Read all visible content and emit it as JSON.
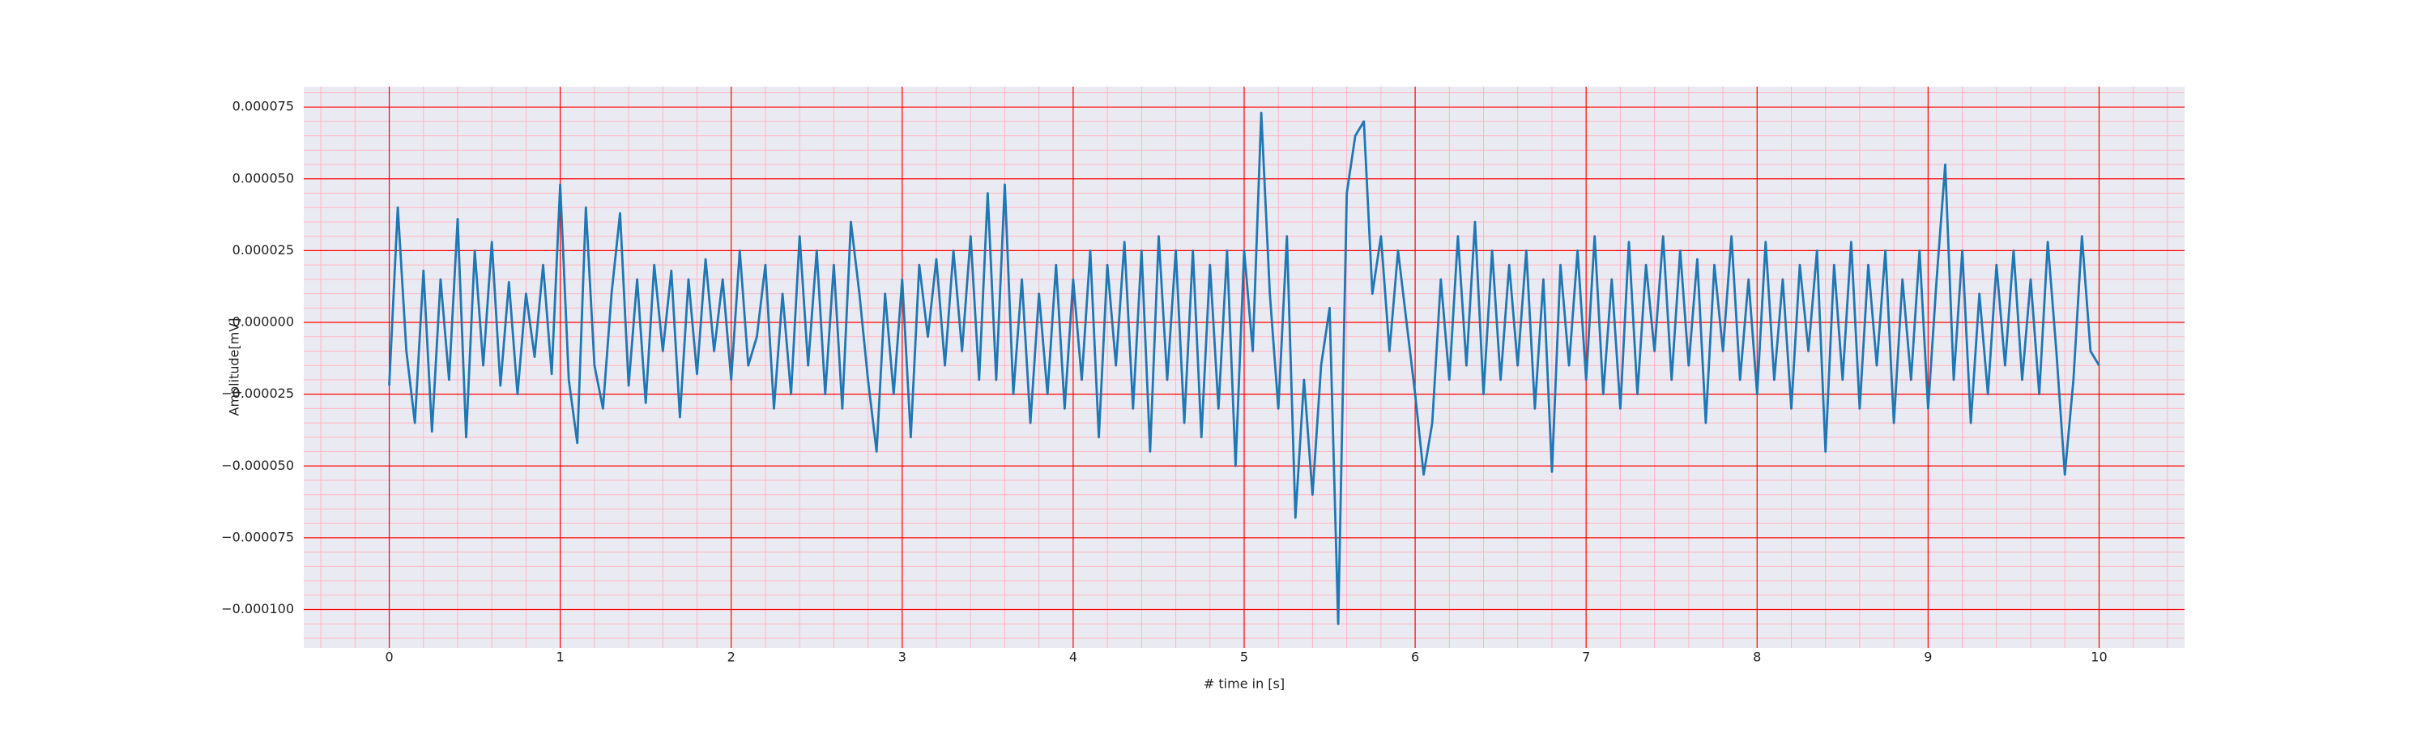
{
  "chart_data": {
    "type": "line",
    "xlabel": "# time in [s]",
    "ylabel": "Amplitude[mV]",
    "x": [
      0,
      0.05,
      0.1,
      0.15,
      0.2,
      0.25,
      0.3,
      0.35,
      0.4,
      0.45,
      0.5,
      0.55,
      0.6,
      0.65,
      0.7,
      0.75,
      0.8,
      0.85,
      0.9,
      0.95,
      1,
      1.05,
      1.1,
      1.15,
      1.2,
      1.25,
      1.3,
      1.35,
      1.4,
      1.45,
      1.5,
      1.55,
      1.6,
      1.65,
      1.7,
      1.75,
      1.8,
      1.85,
      1.9,
      1.95,
      2,
      2.05,
      2.1,
      2.15,
      2.2,
      2.25,
      2.3,
      2.35,
      2.4,
      2.45,
      2.5,
      2.55,
      2.6,
      2.65,
      2.7,
      2.75,
      2.8,
      2.85,
      2.9,
      2.95,
      3,
      3.05,
      3.1,
      3.15,
      3.2,
      3.25,
      3.3,
      3.35,
      3.4,
      3.45,
      3.5,
      3.55,
      3.6,
      3.65,
      3.7,
      3.75,
      3.8,
      3.85,
      3.9,
      3.95,
      4,
      4.05,
      4.1,
      4.15,
      4.2,
      4.25,
      4.3,
      4.35,
      4.4,
      4.45,
      4.5,
      4.55,
      4.6,
      4.65,
      4.7,
      4.75,
      4.8,
      4.85,
      4.9,
      4.95,
      5,
      5.05,
      5.1,
      5.15,
      5.2,
      5.25,
      5.3,
      5.35,
      5.4,
      5.45,
      5.5,
      5.55,
      5.6,
      5.65,
      5.7,
      5.75,
      5.8,
      5.85,
      5.9,
      5.95,
      6,
      6.05,
      6.1,
      6.15,
      6.2,
      6.25,
      6.3,
      6.35,
      6.4,
      6.45,
      6.5,
      6.55,
      6.6,
      6.65,
      6.7,
      6.75,
      6.8,
      6.85,
      6.9,
      6.95,
      7,
      7.05,
      7.1,
      7.15,
      7.2,
      7.25,
      7.3,
      7.35,
      7.4,
      7.45,
      7.5,
      7.55,
      7.6,
      7.65,
      7.7,
      7.75,
      7.8,
      7.85,
      7.9,
      7.95,
      8,
      8.05,
      8.1,
      8.15,
      8.2,
      8.25,
      8.3,
      8.35,
      8.4,
      8.45,
      8.5,
      8.55,
      8.6,
      8.65,
      8.7,
      8.75,
      8.8,
      8.85,
      8.9,
      8.95,
      9,
      9.05,
      9.1,
      9.15,
      9.2,
      9.25,
      9.3,
      9.35,
      9.4,
      9.45,
      9.5,
      9.55,
      9.6,
      9.65,
      9.7,
      9.75,
      9.8,
      9.85,
      9.9,
      9.95,
      10
    ],
    "series": [
      {
        "color": "#1f77b4",
        "values": [
          -2.2e-05,
          4e-05,
          -1e-05,
          -3.5e-05,
          1.8e-05,
          -3.8e-05,
          1.5e-05,
          -2e-05,
          3.6e-05,
          -4e-05,
          2.5e-05,
          -1.5e-05,
          2.8e-05,
          -2.2e-05,
          1.4e-05,
          -2.5e-05,
          1e-05,
          -1.2e-05,
          2e-05,
          -1.8e-05,
          4.8e-05,
          -2e-05,
          -4.2e-05,
          4e-05,
          -1.5e-05,
          -3e-05,
          1e-05,
          3.8e-05,
          -2.2e-05,
          1.5e-05,
          -2.8e-05,
          2e-05,
          -1e-05,
          1.8e-05,
          -3.3e-05,
          1.5e-05,
          -1.8e-05,
          2.2e-05,
          -1e-05,
          1.5e-05,
          -2e-05,
          2.5e-05,
          -1.5e-05,
          -5e-06,
          2e-05,
          -3e-05,
          1e-05,
          -2.5e-05,
          3e-05,
          -1.5e-05,
          2.5e-05,
          -2.5e-05,
          2e-05,
          -3e-05,
          3.5e-05,
          1e-05,
          -2e-05,
          -4.5e-05,
          1e-05,
          -2.5e-05,
          1.5e-05,
          -4e-05,
          2e-05,
          -5e-06,
          2.2e-05,
          -1.5e-05,
          2.5e-05,
          -1e-05,
          3e-05,
          -2e-05,
          4.5e-05,
          -2e-05,
          4.8e-05,
          -2.5e-05,
          1.5e-05,
          -3.5e-05,
          1e-05,
          -2.5e-05,
          2e-05,
          -3e-05,
          1.5e-05,
          -2e-05,
          2.5e-05,
          -4e-05,
          2e-05,
          -1.5e-05,
          2.8e-05,
          -3e-05,
          2.5e-05,
          -4.5e-05,
          3e-05,
          -2e-05,
          2.5e-05,
          -3.5e-05,
          2.5e-05,
          -4e-05,
          2e-05,
          -3e-05,
          2.5e-05,
          -5e-05,
          2.5e-05,
          -1e-05,
          7.3e-05,
          1e-05,
          -3e-05,
          3e-05,
          -6.8e-05,
          -2e-05,
          -6e-05,
          -1.5e-05,
          5e-06,
          -0.000105,
          4.5e-05,
          6.5e-05,
          7e-05,
          1e-05,
          3e-05,
          -1e-05,
          2.5e-05,
          0,
          -2.5e-05,
          -5.3e-05,
          -3.5e-05,
          1.5e-05,
          -2e-05,
          3e-05,
          -1.5e-05,
          3.5e-05,
          -2.5e-05,
          2.5e-05,
          -2e-05,
          2e-05,
          -1.5e-05,
          2.5e-05,
          -3e-05,
          1.5e-05,
          -5.2e-05,
          2e-05,
          -1.5e-05,
          2.5e-05,
          -2e-05,
          3e-05,
          -2.5e-05,
          1.5e-05,
          -3e-05,
          2.8e-05,
          -2.5e-05,
          2e-05,
          -1e-05,
          3e-05,
          -2e-05,
          2.5e-05,
          -1.5e-05,
          2.2e-05,
          -3.5e-05,
          2e-05,
          -1e-05,
          3e-05,
          -2e-05,
          1.5e-05,
          -2.5e-05,
          2.8e-05,
          -2e-05,
          1.5e-05,
          -3e-05,
          2e-05,
          -1e-05,
          2.5e-05,
          -4.5e-05,
          2e-05,
          -2e-05,
          2.8e-05,
          -3e-05,
          2e-05,
          -1.5e-05,
          2.5e-05,
          -3.5e-05,
          1.5e-05,
          -2e-05,
          2.5e-05,
          -3e-05,
          1.5e-05,
          5.5e-05,
          -2e-05,
          2.5e-05,
          -3.5e-05,
          1e-05,
          -2.5e-05,
          2e-05,
          -1.5e-05,
          2.5e-05,
          -2e-05,
          1.5e-05,
          -2.5e-05,
          2.8e-05,
          -1e-05,
          -5.3e-05,
          -2e-05,
          3e-05,
          -1e-05,
          -1.5e-05
        ]
      }
    ],
    "xlim": [
      -0.5,
      10.5
    ],
    "ylim": [
      -0.0001134,
      8.21e-05
    ],
    "xticks": [
      0,
      1,
      2,
      3,
      4,
      5,
      6,
      7,
      8,
      9,
      10
    ],
    "yticks": [
      {
        "value": -0.0001,
        "label": "−0.000100"
      },
      {
        "value": -7.5e-05,
        "label": "−0.000075"
      },
      {
        "value": -5e-05,
        "label": "−0.000050"
      },
      {
        "value": -2.5e-05,
        "label": "−0.000025"
      },
      {
        "value": 0,
        "label": "0.000000"
      },
      {
        "value": 2.5e-05,
        "label": "0.000025"
      },
      {
        "value": 5e-05,
        "label": "0.000050"
      },
      {
        "value": 7.5e-05,
        "label": "0.000075"
      }
    ],
    "xminorticks": [
      -0.4,
      -0.2,
      0.2,
      0.4,
      0.6,
      0.8,
      1.2,
      1.4,
      1.6,
      1.8,
      2.2,
      2.4,
      2.6,
      2.8,
      3.2,
      3.4,
      3.6,
      3.8,
      4.2,
      4.4,
      4.6,
      4.8,
      5.2,
      5.4,
      5.6,
      5.8,
      6.2,
      6.4,
      6.6,
      6.8,
      7.2,
      7.4,
      7.6,
      7.8,
      8.2,
      8.4,
      8.6,
      8.8,
      9.2,
      9.4,
      9.6,
      9.8,
      10.2,
      10.4
    ],
    "yminorticks": [
      -0.00011,
      -0.000105,
      -9.5e-05,
      -9e-05,
      -8.5e-05,
      -8e-05,
      -7e-05,
      -6.5e-05,
      -6e-05,
      -5.5e-05,
      -4.5e-05,
      -4e-05,
      -3.5e-05,
      -3e-05,
      -2e-05,
      -1.5e-05,
      -1e-05,
      -5e-06,
      5e-06,
      1e-05,
      1.5e-05,
      2e-05,
      3e-05,
      3.5e-05,
      4e-05,
      4.5e-05,
      5.5e-05,
      6e-05,
      6.5e-05,
      7e-05,
      8e-05
    ],
    "grid": true,
    "grid_color": "#ff0000",
    "minor_grid_color": "#ffb6c1",
    "background": "#eaeaf2"
  }
}
